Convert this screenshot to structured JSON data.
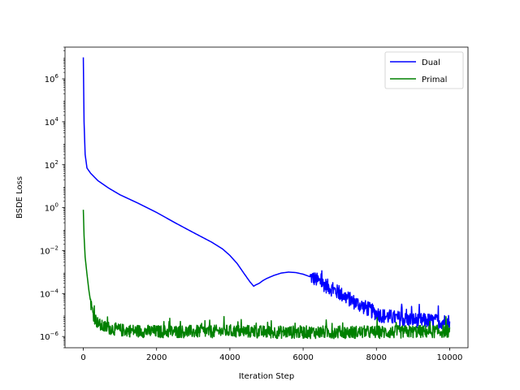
{
  "chart_data": {
    "type": "line",
    "title": "",
    "xlabel": "Iteration Step",
    "ylabel": "BSDE Loss",
    "xlim": [
      -500,
      10500
    ],
    "ylim": [
      3e-07,
      30000000.0
    ],
    "yscale": "log",
    "grid": false,
    "legend_position": "top-right",
    "x_ticks": [
      0,
      2000,
      4000,
      6000,
      8000,
      10000
    ],
    "x_tick_labels": [
      "0",
      "2000",
      "4000",
      "6000",
      "8000",
      "10000"
    ],
    "y_tick_exponents": [
      -6,
      -4,
      -2,
      0,
      2,
      4,
      6
    ],
    "y_tick_base": "10",
    "series": [
      {
        "name": "Dual",
        "color": "#0000ff",
        "x": [
          0,
          20,
          50,
          100,
          200,
          400,
          700,
          1000,
          1500,
          2000,
          2500,
          3000,
          3500,
          3800,
          4000,
          4200,
          4400,
          4550,
          4650,
          4700,
          4800,
          4900,
          5000,
          5200,
          5400,
          5600,
          5800,
          6000,
          6200,
          6400,
          6600,
          7000,
          7400,
          7800,
          8000,
          8200,
          8400,
          8600,
          8800,
          9000,
          9200,
          9400,
          9600,
          9800,
          10000
        ],
        "y": [
          10000000.0,
          10000.0,
          300,
          70,
          40,
          18,
          8,
          4,
          1.6,
          0.6,
          0.2,
          0.07,
          0.025,
          0.012,
          0.006,
          0.0025,
          0.0008,
          0.00035,
          0.00022,
          0.00025,
          0.0003,
          0.0004,
          0.0005,
          0.0007,
          0.0009,
          0.001,
          0.00095,
          0.0008,
          0.0006,
          0.0004,
          0.00025,
          0.0001,
          4e-05,
          1.8e-05,
          1.2e-05,
          9e-06,
          8e-06,
          7e-06,
          6e-06,
          6e-06,
          5.5e-06,
          5.5e-06,
          5e-06,
          5e-06,
          5e-06
        ],
        "noise_start": 6200,
        "noise_amplitude": 0.35
      },
      {
        "name": "Primal",
        "color": "#008000",
        "x": [
          0,
          20,
          50,
          100,
          150,
          200,
          250,
          300,
          400,
          500,
          700,
          1000,
          1500,
          2000,
          2500,
          3000,
          3500,
          4000,
          4500,
          5000,
          5500,
          6000,
          6500,
          7000,
          7500,
          8000,
          8500,
          9000,
          9500,
          10000
        ],
        "y": [
          0.8,
          0.05,
          0.005,
          0.0008,
          0.00015,
          4e-05,
          1.5e-05,
          8e-06,
          4e-06,
          3e-06,
          2.5e-06,
          2e-06,
          1.8e-06,
          1.7e-06,
          1.7e-06,
          1.7e-06,
          1.7e-06,
          1.8e-06,
          1.7e-06,
          1.6e-06,
          1.6e-06,
          1.6e-06,
          1.6e-06,
          1.6e-06,
          1.6e-06,
          1.6e-06,
          1.6e-06,
          1.7e-06,
          1.7e-06,
          1.8e-06
        ],
        "noise_start": 200,
        "noise_amplitude": 0.3
      }
    ]
  }
}
